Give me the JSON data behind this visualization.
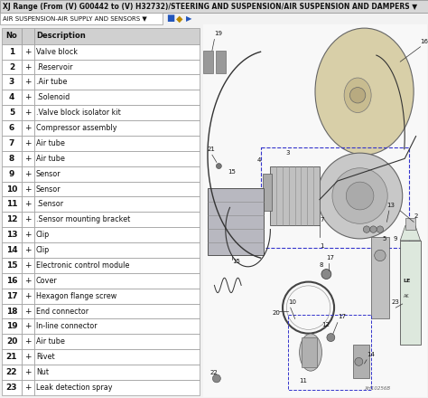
{
  "title": "XJ Range (From (V) G00442 to (V) H32732)/STEERING AND SUSPENSION/AIR SUSPENSION AND DAMPERS ▼",
  "subtitle": "AIR SUSPENSION-AIR SUPPLY AND SENSORS",
  "subtitle_dropdown": "▼",
  "bg_color": "#f2f2f2",
  "title_bg": "#e0e0e0",
  "subtitle_bg": "#ffffff",
  "table_bg": "#ffffff",
  "table_header_bg": "#e8e8e8",
  "border_color": "#aaaaaa",
  "items": [
    {
      "no": "1",
      "desc": "Valve block"
    },
    {
      "no": "2",
      "desc": ".Reservoir"
    },
    {
      "no": "3",
      "desc": ".Air tube"
    },
    {
      "no": "4",
      "desc": ".Solenoid"
    },
    {
      "no": "5",
      "desc": ".Valve block isolator kit"
    },
    {
      "no": "6",
      "desc": "Compressor assembly"
    },
    {
      "no": "7",
      "desc": "Air tube"
    },
    {
      "no": "8",
      "desc": "Air tube"
    },
    {
      "no": "9",
      "desc": "Sensor"
    },
    {
      "no": "10",
      "desc": "Sensor"
    },
    {
      "no": "11",
      "desc": ".Sensor"
    },
    {
      "no": "12",
      "desc": ".Sensor mounting bracket"
    },
    {
      "no": "13",
      "desc": "Clip"
    },
    {
      "no": "14",
      "desc": "Clip"
    },
    {
      "no": "15",
      "desc": "Electronic control module"
    },
    {
      "no": "16",
      "desc": "Cover"
    },
    {
      "no": "17",
      "desc": "Hexagon flange screw"
    },
    {
      "no": "18",
      "desc": "End connector"
    },
    {
      "no": "19",
      "desc": "In-line connector"
    },
    {
      "no": "20",
      "desc": "Air tube"
    },
    {
      "no": "21",
      "desc": "Rivet"
    },
    {
      "no": "22",
      "desc": "Nut"
    },
    {
      "no": "23",
      "desc": "Leak detection spray"
    }
  ],
  "diagram_bg": "#f8f8f8",
  "line_color": "#333333",
  "ref_text": "XH10256B"
}
